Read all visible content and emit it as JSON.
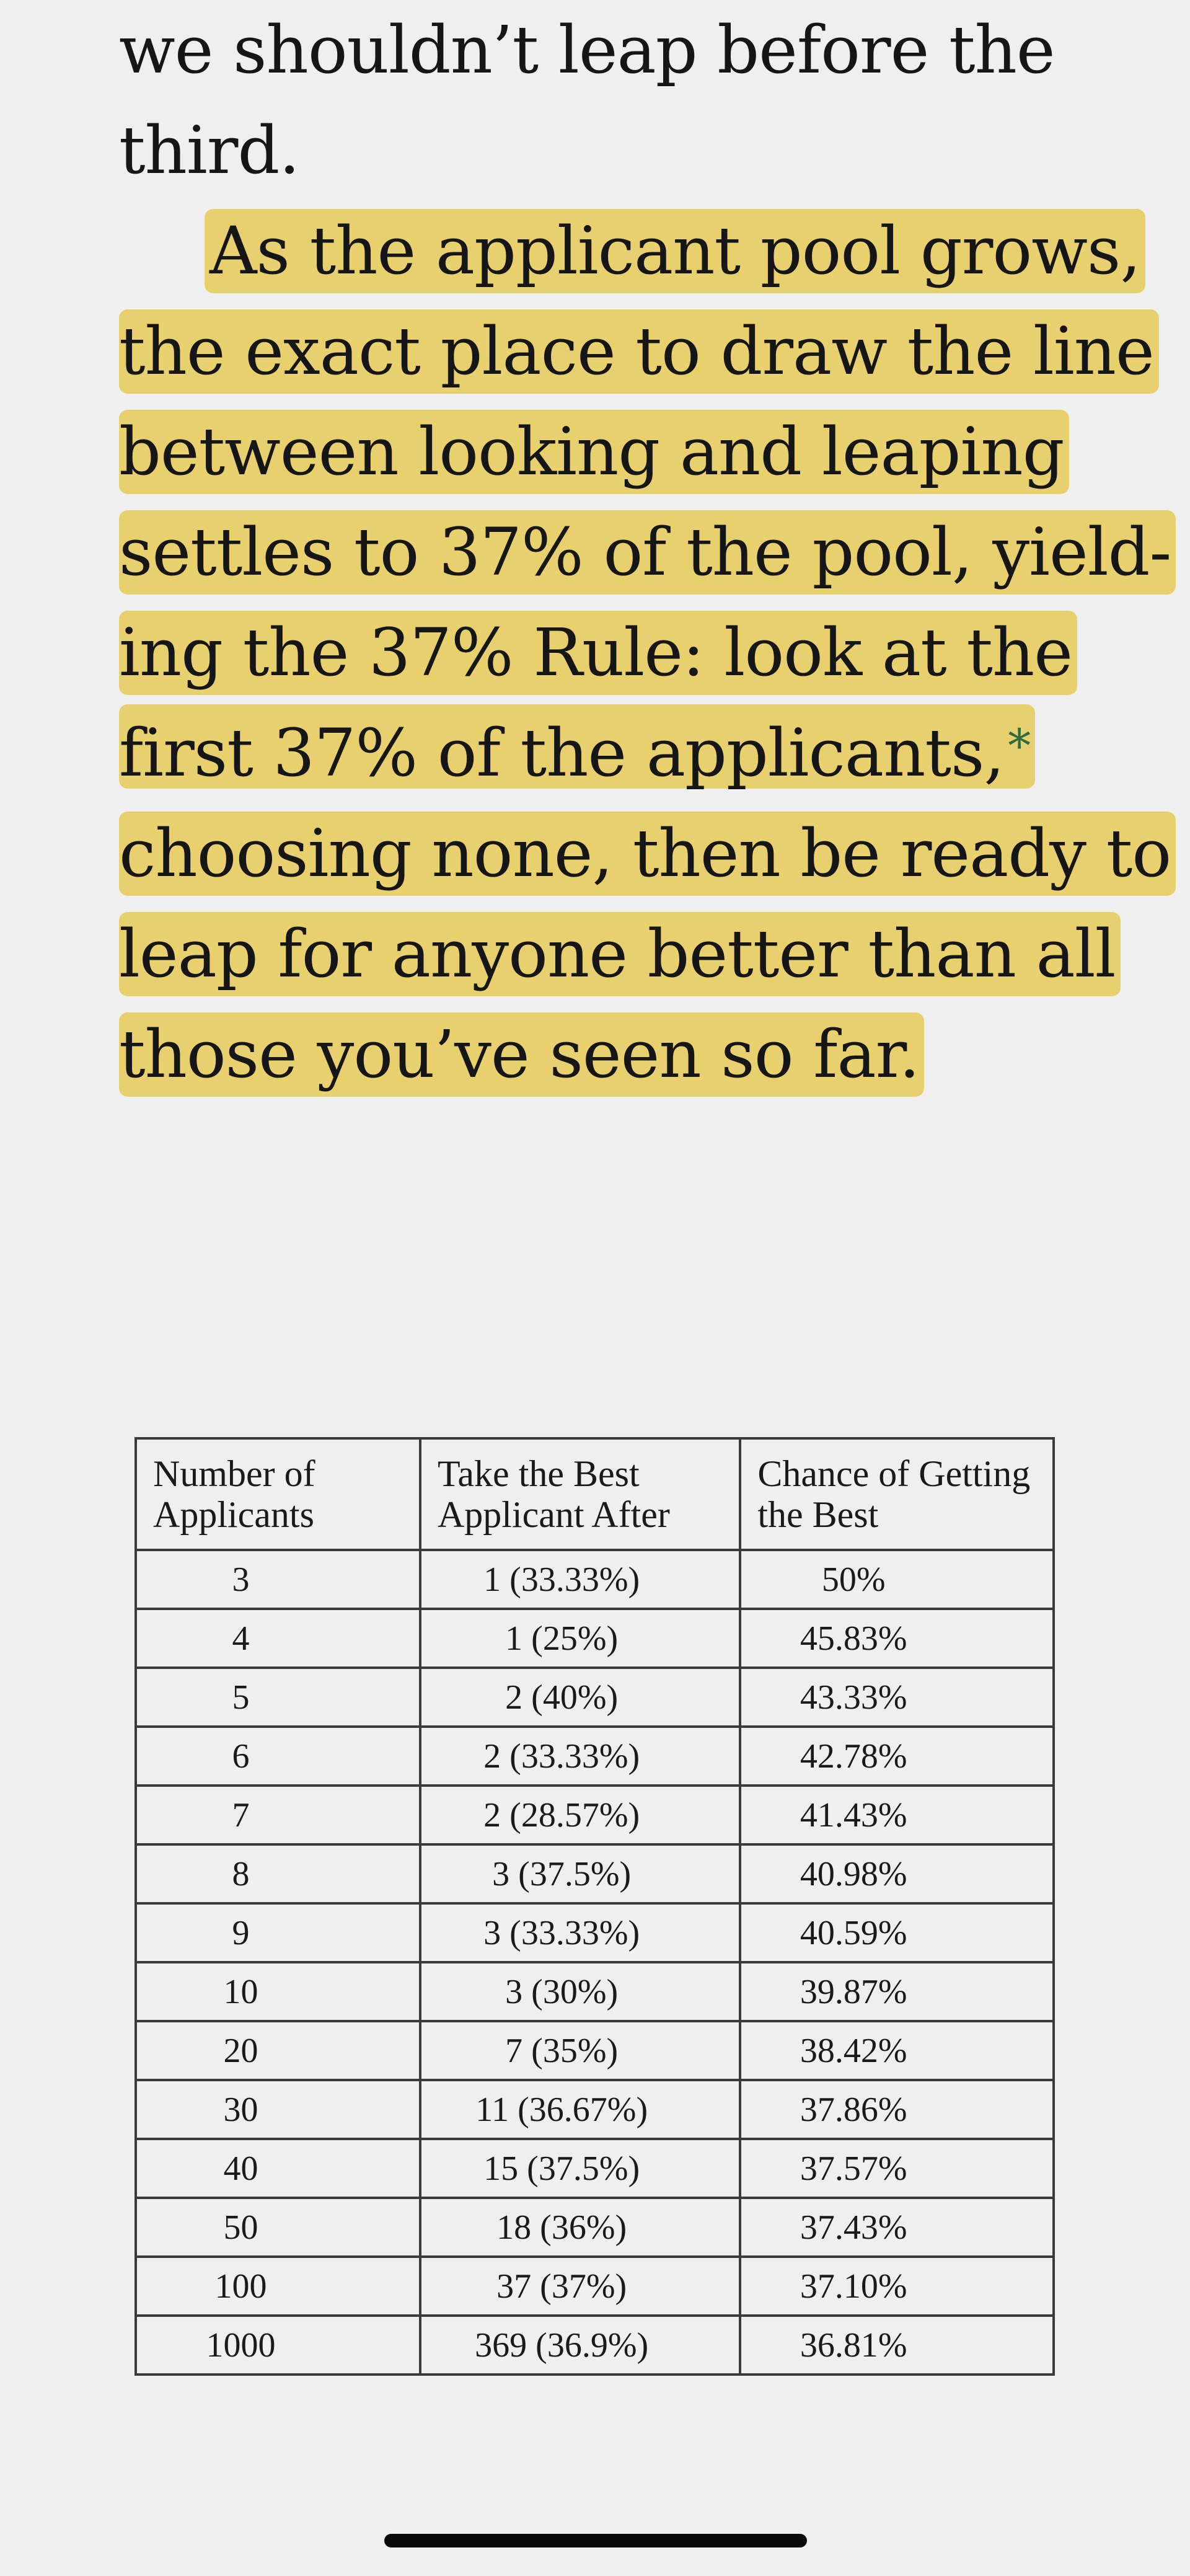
{
  "text_lines": [
    "we shouldn’t leap before the",
    "third.",
    "As the applicant pool grows,",
    "the exact place to draw the line",
    "between looking and leaping",
    "settles to 37% of the pool, yield-",
    "ing the 37% Rule: look at the",
    "first 37% of the applicants,",
    "choosing none, then be ready to",
    "leap for anyone better than all",
    "those you’ve seen so far."
  ],
  "footnote_marker": "*",
  "highlight_color": "#e9d06f",
  "table": {
    "headers": {
      "number_line1": "Number of",
      "number_line2": "Applicants",
      "take_line1": "Take the Best",
      "take_line2": "Applicant After",
      "chance_line1": "Chance of Getting",
      "chance_line2": "the Best"
    },
    "rows": [
      {
        "n": "3",
        "take": "1 (33.33%)",
        "chance": "50%"
      },
      {
        "n": "4",
        "take": "1 (25%)",
        "chance": "45.83%"
      },
      {
        "n": "5",
        "take": "2 (40%)",
        "chance": "43.33%"
      },
      {
        "n": "6",
        "take": "2 (33.33%)",
        "chance": "42.78%"
      },
      {
        "n": "7",
        "take": "2 (28.57%)",
        "chance": "41.43%"
      },
      {
        "n": "8",
        "take": "3 (37.5%)",
        "chance": "40.98%"
      },
      {
        "n": "9",
        "take": "3 (33.33%)",
        "chance": "40.59%"
      },
      {
        "n": "10",
        "take": "3 (30%)",
        "chance": "39.87%"
      },
      {
        "n": "20",
        "take": "7 (35%)",
        "chance": "38.42%"
      },
      {
        "n": "30",
        "take": "11 (36.67%)",
        "chance": "37.86%"
      },
      {
        "n": "40",
        "take": "15 (37.5%)",
        "chance": "37.57%"
      },
      {
        "n": "50",
        "take": "18 (36%)",
        "chance": "37.43%"
      },
      {
        "n": "100",
        "take": "37 (37%)",
        "chance": "37.10%"
      },
      {
        "n": "1000",
        "take": "369 (36.9%)",
        "chance": "36.81%"
      }
    ]
  }
}
